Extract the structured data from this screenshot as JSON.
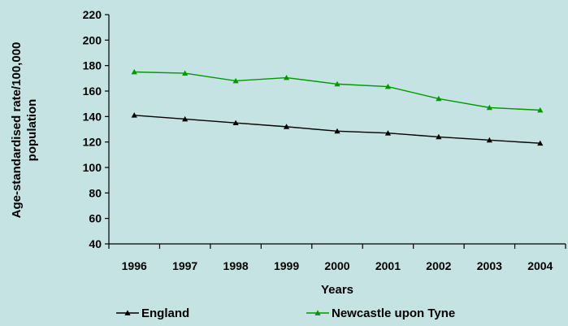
{
  "chart_data": {
    "type": "line",
    "title": "",
    "xlabel": "Years",
    "ylabel_line1": "Age-standardised rate/100,000",
    "ylabel_line2": "population",
    "ylim": [
      40,
      220
    ],
    "yticks": [
      40,
      60,
      80,
      100,
      120,
      140,
      160,
      180,
      200,
      220
    ],
    "categories": [
      "1996",
      "1997",
      "1998",
      "1999",
      "2000",
      "2001",
      "2002",
      "2003",
      "2004"
    ],
    "grid": false,
    "legend_position": "bottom",
    "series": [
      {
        "name": "England",
        "color": "#000000",
        "marker": "triangle",
        "values": [
          141,
          138,
          135,
          132,
          128.5,
          127,
          124,
          121.5,
          119
        ]
      },
      {
        "name": "Newcastle upon Tyne",
        "color": "#009900",
        "marker": "triangle",
        "values": [
          175,
          174,
          168,
          170.5,
          165.5,
          163.5,
          154,
          147,
          145
        ]
      }
    ]
  }
}
